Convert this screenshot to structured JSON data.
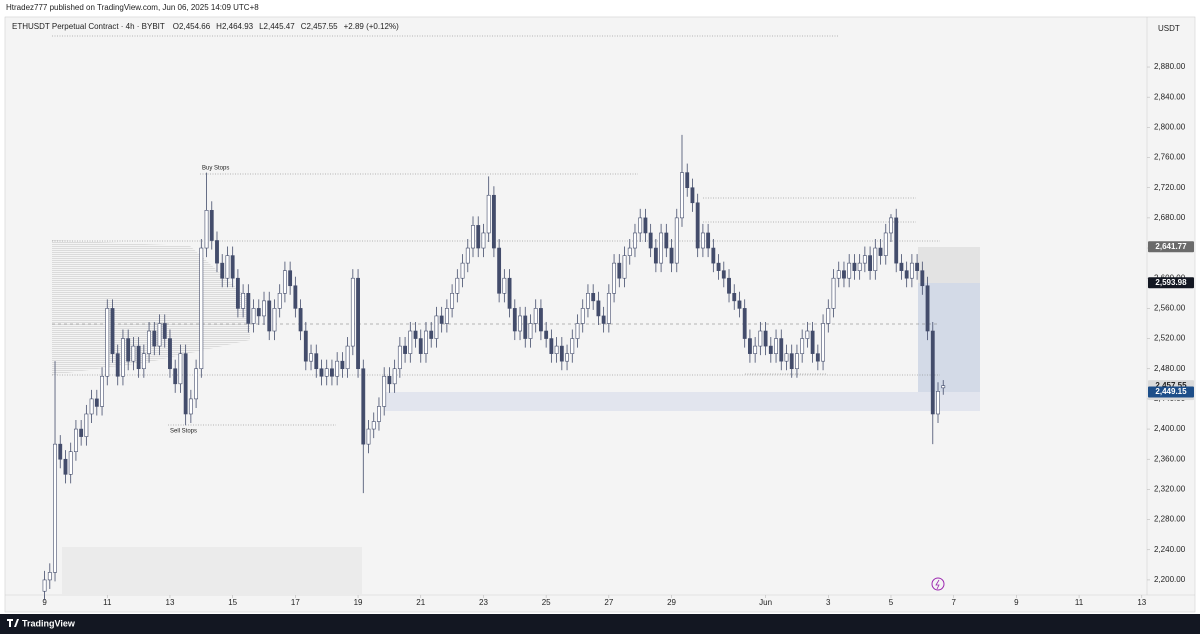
{
  "header": {
    "published": "Htradez777 published on TradingView.com, Jun 06, 2025 14:09 UTC+8"
  },
  "footer": {
    "brand": "TradingView"
  },
  "chart_data": {
    "type": "candlestick",
    "title": "ETHUSDT Perpetual Contract · 4h · BYBIT",
    "legend_values": [
      "O2,454.66",
      "H2,464.93",
      "L2,445.47",
      "C2,457.55",
      "+2.89 (+0.12%)"
    ],
    "currency": "USDT",
    "annotations": [
      "Buy Stops",
      "Sell Stops"
    ],
    "countdown": "01:50:53",
    "up_color": "#ffffff",
    "down_color": "#434c6b",
    "wick_color": "#434c6b",
    "grid": false,
    "xlim": [
      -7,
      211
    ],
    "xticks": [
      {
        "value": 0,
        "label": "9"
      },
      {
        "value": 12,
        "label": "11"
      },
      {
        "value": 24,
        "label": "13"
      },
      {
        "value": 36,
        "label": "15"
      },
      {
        "value": 48,
        "label": "17"
      },
      {
        "value": 60,
        "label": "19"
      },
      {
        "value": 72,
        "label": "21"
      },
      {
        "value": 84,
        "label": "23"
      },
      {
        "value": 96,
        "label": "25"
      },
      {
        "value": 108,
        "label": "27"
      },
      {
        "value": 120,
        "label": "29"
      },
      {
        "value": 138,
        "label": "Jun"
      },
      {
        "value": 150,
        "label": "3"
      },
      {
        "value": 162,
        "label": "5"
      },
      {
        "value": 174,
        "label": "7"
      },
      {
        "value": 186,
        "label": "9"
      },
      {
        "value": 198,
        "label": "11"
      },
      {
        "value": 210,
        "label": "13"
      }
    ],
    "ylim": [
      2180,
      2945
    ],
    "yticks": [
      {
        "value": 2200,
        "label": "2,200.00"
      },
      {
        "value": 2240,
        "label": "2,240.00"
      },
      {
        "value": 2280,
        "label": "2,280.00"
      },
      {
        "value": 2320,
        "label": "2,320.00"
      },
      {
        "value": 2360,
        "label": "2,360.00"
      },
      {
        "value": 2400,
        "label": "2,400.00"
      },
      {
        "value": 2440,
        "label": "2,440.00"
      },
      {
        "value": 2480,
        "label": "2,480.00"
      },
      {
        "value": 2520,
        "label": "2,520.00"
      },
      {
        "value": 2560,
        "label": "2,560.00"
      },
      {
        "value": 2600,
        "label": "2,600.00"
      },
      {
        "value": 2640,
        "label": "2,640.00"
      },
      {
        "value": 2680,
        "label": "2,680.00"
      },
      {
        "value": 2720,
        "label": "2,720.00"
      },
      {
        "value": 2760,
        "label": "2,760.00"
      },
      {
        "value": 2800,
        "label": "2,800.00"
      },
      {
        "value": 2840,
        "label": "2,840.00"
      },
      {
        "value": 2880,
        "label": "2,880.00"
      }
    ],
    "price_labels": [
      {
        "value": 2641.77,
        "label": "2,641.77",
        "color": "#6b6b6b",
        "text_color": "#ffffff"
      },
      {
        "value": 2593.98,
        "label": "2,593.98",
        "color": "#131722",
        "text_color": "#ffffff"
      },
      {
        "value": 2457.55,
        "label": "2,457.55",
        "color": "#dadada",
        "text_color": "#222222"
      },
      {
        "value": 2449.15,
        "label": "2,449.15",
        "color": "#1d4e89",
        "text_color": "#ffffff"
      }
    ],
    "open": [
      2185,
      2200,
      2210,
      2380,
      2360,
      2340,
      2370,
      2400,
      2390,
      2420,
      2440,
      2430,
      2470,
      2560,
      2500,
      2470,
      2520,
      2490,
      2510,
      2480,
      2500,
      2530,
      2510,
      2540,
      2520,
      2480,
      2460,
      2500,
      2420,
      2440,
      2480,
      2640,
      2690,
      2650,
      2620,
      2600,
      2630,
      2600,
      2560,
      2580,
      2540,
      2560,
      2550,
      2570,
      2530,
      2560,
      2580,
      2610,
      2590,
      2560,
      2530,
      2490,
      2500,
      2480,
      2470,
      2480,
      2470,
      2490,
      2480,
      2510,
      2600,
      2480,
      2380,
      2400,
      2410,
      2430,
      2470,
      2460,
      2480,
      2510,
      2500,
      2530,
      2520,
      2500,
      2530,
      2520,
      2550,
      2540,
      2560,
      2580,
      2600,
      2620,
      2640,
      2670,
      2640,
      2660,
      2710,
      2640,
      2580,
      2600,
      2560,
      2530,
      2550,
      2520,
      2540,
      2560,
      2530,
      2520,
      2500,
      2510,
      2490,
      2500,
      2520,
      2540,
      2560,
      2580,
      2570,
      2550,
      2540,
      2580,
      2620,
      2600,
      2630,
      2640,
      2660,
      2680,
      2660,
      2640,
      2620,
      2660,
      2640,
      2620,
      2680,
      2740,
      2720,
      2700,
      2640,
      2660,
      2640,
      2620,
      2610,
      2600,
      2580,
      2570,
      2560,
      2520,
      2500,
      2510,
      2530,
      2510,
      2500,
      2520,
      2490,
      2500,
      2480,
      2500,
      2520,
      2530,
      2500,
      2490,
      2540,
      2560,
      2600,
      2610,
      2600,
      2620,
      2610,
      2620,
      2630,
      2610,
      2640,
      2630,
      2660,
      2680,
      2620,
      2610,
      2600,
      2620,
      2610,
      2590,
      2530,
      2420,
      2454.66
    ],
    "high": [
      2212,
      2222,
      2490,
      2392,
      2372,
      2382,
      2412,
      2412,
      2432,
      2452,
      2452,
      2482,
      2572,
      2572,
      2512,
      2532,
      2532,
      2522,
      2522,
      2512,
      2542,
      2542,
      2552,
      2552,
      2532,
      2492,
      2512,
      2512,
      2452,
      2492,
      2652,
      2740,
      2702,
      2662,
      2632,
      2642,
      2642,
      2612,
      2592,
      2592,
      2572,
      2572,
      2582,
      2582,
      2572,
      2592,
      2622,
      2622,
      2602,
      2572,
      2542,
      2512,
      2512,
      2492,
      2492,
      2492,
      2502,
      2502,
      2522,
      2612,
      2612,
      2492,
      2412,
      2422,
      2442,
      2482,
      2482,
      2492,
      2522,
      2522,
      2542,
      2542,
      2532,
      2542,
      2542,
      2562,
      2562,
      2572,
      2592,
      2612,
      2632,
      2652,
      2682,
      2682,
      2672,
      2735,
      2722,
      2652,
      2612,
      2612,
      2572,
      2562,
      2562,
      2552,
      2572,
      2572,
      2542,
      2532,
      2522,
      2522,
      2512,
      2532,
      2552,
      2572,
      2592,
      2592,
      2582,
      2562,
      2592,
      2632,
      2632,
      2642,
      2652,
      2672,
      2692,
      2692,
      2672,
      2652,
      2672,
      2672,
      2652,
      2692,
      2790,
      2752,
      2732,
      2712,
      2672,
      2672,
      2652,
      2632,
      2622,
      2612,
      2592,
      2582,
      2572,
      2532,
      2522,
      2542,
      2542,
      2522,
      2532,
      2532,
      2512,
      2512,
      2512,
      2532,
      2542,
      2542,
      2512,
      2552,
      2572,
      2612,
      2622,
      2622,
      2632,
      2632,
      2632,
      2642,
      2642,
      2652,
      2652,
      2672,
      2685,
      2692,
      2632,
      2622,
      2632,
      2632,
      2622,
      2602,
      2542,
      2462,
      2464.93
    ],
    "low": [
      2173,
      2188,
      2198,
      2348,
      2328,
      2328,
      2358,
      2378,
      2378,
      2408,
      2418,
      2418,
      2458,
      2488,
      2458,
      2458,
      2478,
      2478,
      2468,
      2468,
      2488,
      2498,
      2498,
      2508,
      2468,
      2448,
      2448,
      2405,
      2408,
      2428,
      2468,
      2628,
      2638,
      2608,
      2588,
      2588,
      2588,
      2548,
      2548,
      2528,
      2528,
      2538,
      2538,
      2518,
      2518,
      2548,
      2568,
      2578,
      2548,
      2518,
      2478,
      2478,
      2468,
      2458,
      2458,
      2458,
      2458,
      2468,
      2468,
      2498,
      2468,
      2315,
      2368,
      2388,
      2398,
      2418,
      2448,
      2448,
      2468,
      2488,
      2488,
      2508,
      2488,
      2488,
      2508,
      2508,
      2528,
      2528,
      2548,
      2568,
      2588,
      2608,
      2628,
      2628,
      2628,
      2648,
      2628,
      2568,
      2568,
      2548,
      2518,
      2518,
      2508,
      2508,
      2528,
      2518,
      2508,
      2488,
      2488,
      2478,
      2478,
      2488,
      2508,
      2528,
      2548,
      2558,
      2538,
      2528,
      2528,
      2568,
      2588,
      2588,
      2618,
      2628,
      2648,
      2648,
      2628,
      2608,
      2608,
      2628,
      2608,
      2608,
      2668,
      2708,
      2688,
      2628,
      2628,
      2628,
      2608,
      2598,
      2588,
      2568,
      2558,
      2548,
      2508,
      2488,
      2488,
      2498,
      2498,
      2488,
      2488,
      2478,
      2478,
      2468,
      2468,
      2488,
      2508,
      2488,
      2478,
      2478,
      2528,
      2548,
      2588,
      2588,
      2588,
      2598,
      2598,
      2608,
      2598,
      2598,
      2618,
      2618,
      2648,
      2608,
      2598,
      2588,
      2588,
      2598,
      2578,
      2518,
      2380,
      2408,
      2445.47
    ],
    "close": [
      2200,
      2210,
      2380,
      2360,
      2340,
      2370,
      2400,
      2390,
      2420,
      2440,
      2430,
      2470,
      2560,
      2500,
      2470,
      2520,
      2490,
      2510,
      2480,
      2500,
      2530,
      2510,
      2540,
      2520,
      2480,
      2460,
      2500,
      2420,
      2440,
      2480,
      2640,
      2690,
      2650,
      2620,
      2600,
      2630,
      2600,
      2560,
      2580,
      2540,
      2560,
      2550,
      2570,
      2530,
      2560,
      2580,
      2610,
      2590,
      2560,
      2530,
      2490,
      2500,
      2480,
      2470,
      2480,
      2470,
      2490,
      2480,
      2510,
      2600,
      2480,
      2380,
      2400,
      2410,
      2430,
      2470,
      2460,
      2480,
      2510,
      2500,
      2530,
      2520,
      2500,
      2530,
      2520,
      2550,
      2540,
      2560,
      2580,
      2600,
      2620,
      2640,
      2670,
      2640,
      2660,
      2710,
      2640,
      2580,
      2600,
      2560,
      2530,
      2550,
      2520,
      2540,
      2560,
      2530,
      2520,
      2500,
      2510,
      2490,
      2500,
      2520,
      2540,
      2560,
      2580,
      2570,
      2550,
      2540,
      2580,
      2620,
      2600,
      2630,
      2640,
      2660,
      2680,
      2660,
      2640,
      2620,
      2660,
      2640,
      2620,
      2680,
      2740,
      2720,
      2700,
      2640,
      2660,
      2640,
      2620,
      2610,
      2600,
      2580,
      2570,
      2560,
      2520,
      2500,
      2510,
      2530,
      2510,
      2500,
      2520,
      2490,
      2500,
      2480,
      2500,
      2520,
      2530,
      2500,
      2490,
      2540,
      2560,
      2600,
      2610,
      2600,
      2620,
      2610,
      2620,
      2630,
      2610,
      2640,
      2630,
      2660,
      2680,
      2620,
      2610,
      2600,
      2620,
      2610,
      2590,
      2530,
      2420,
      2450,
      2457.55
    ]
  }
}
